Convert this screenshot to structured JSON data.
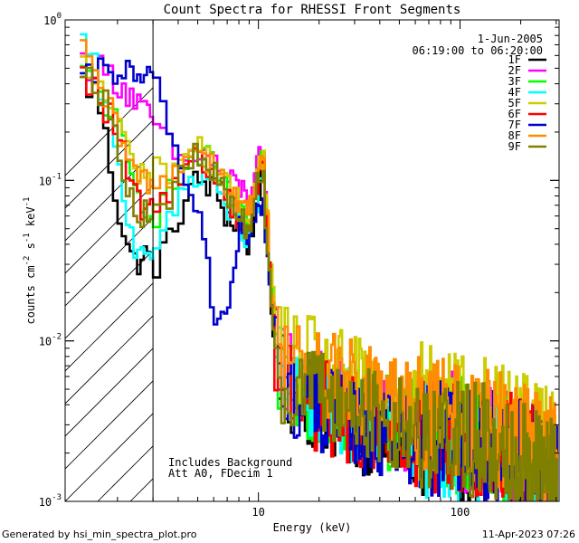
{
  "chart_data": {
    "type": "line",
    "title": "Count Spectra for RHESSI Front Segments",
    "xlabel": "Energy (keV)",
    "ylabel_parts": [
      "counts cm",
      "-2",
      " s",
      "-1",
      " keV",
      "-1"
    ],
    "xscale": "log",
    "yscale": "log",
    "xlim": [
      1.1,
      310
    ],
    "ylim": [
      0.001,
      1.0
    ],
    "x_ticks": [
      {
        "value": 10,
        "label": "10"
      },
      {
        "value": 100,
        "label": "100"
      }
    ],
    "y_ticks": [
      {
        "value": 1.0,
        "base": "10",
        "exp": "0"
      },
      {
        "value": 0.1,
        "base": "10",
        "exp": "-1"
      },
      {
        "value": 0.01,
        "base": "10",
        "exp": "-2"
      },
      {
        "value": 0.001,
        "base": "10",
        "exp": "-3"
      }
    ],
    "hatched_region": [
      1.1,
      3.0
    ],
    "cutoff_line_energy": 3.0,
    "annotations_top_right": [
      "1-Jun-2005",
      "06:19:00 to 06:20:00"
    ],
    "annotations_bottom_left": [
      "Includes Background",
      "Att A0, FDecim 1"
    ],
    "legend_position": "top-right",
    "series": [
      {
        "name": "1F",
        "color": "#000000",
        "anchors": [
          [
            1.35,
            0.4
          ],
          [
            1.6,
            0.35
          ],
          [
            2.0,
            0.07
          ],
          [
            2.4,
            0.03
          ],
          [
            2.8,
            0.035
          ],
          [
            3.0,
            0.028
          ],
          [
            3.6,
            0.04
          ],
          [
            4.2,
            0.07
          ],
          [
            5.0,
            0.1
          ],
          [
            6.0,
            0.09
          ],
          [
            7.0,
            0.06
          ],
          [
            8.0,
            0.05
          ],
          [
            9.0,
            0.04
          ],
          [
            10.5,
            0.12
          ],
          [
            11.5,
            0.02
          ],
          [
            12.5,
            0.006
          ],
          [
            15,
            0.005
          ],
          [
            20,
            0.004
          ],
          [
            30,
            0.003
          ],
          [
            50,
            0.0025
          ],
          [
            80,
            0.0023
          ],
          [
            120,
            0.0022
          ],
          [
            200,
            0.0018
          ],
          [
            290,
            0.0013
          ]
        ]
      },
      {
        "name": "2F",
        "color": "#ff00ff",
        "anchors": [
          [
            1.35,
            0.55
          ],
          [
            1.6,
            0.5
          ],
          [
            2.0,
            0.42
          ],
          [
            2.4,
            0.33
          ],
          [
            2.8,
            0.25
          ],
          [
            3.0,
            0.24
          ],
          [
            3.6,
            0.16
          ],
          [
            4.2,
            0.13
          ],
          [
            5.0,
            0.15
          ],
          [
            6.0,
            0.13
          ],
          [
            7.0,
            0.1
          ],
          [
            8.0,
            0.09
          ],
          [
            9.0,
            0.08
          ],
          [
            10.5,
            0.15
          ],
          [
            11.5,
            0.025
          ],
          [
            12.5,
            0.008
          ],
          [
            15,
            0.006
          ],
          [
            20,
            0.0045
          ],
          [
            30,
            0.0035
          ],
          [
            50,
            0.003
          ],
          [
            80,
            0.0028
          ],
          [
            120,
            0.0025
          ],
          [
            200,
            0.002
          ],
          [
            290,
            0.0015
          ]
        ]
      },
      {
        "name": "3F",
        "color": "#00ff00",
        "anchors": [
          [
            1.35,
            0.45
          ],
          [
            1.6,
            0.38
          ],
          [
            2.0,
            0.22
          ],
          [
            2.4,
            0.09
          ],
          [
            2.8,
            0.07
          ],
          [
            3.0,
            0.06
          ],
          [
            3.6,
            0.08
          ],
          [
            4.2,
            0.11
          ],
          [
            5.0,
            0.15
          ],
          [
            6.0,
            0.12
          ],
          [
            7.0,
            0.08
          ],
          [
            8.0,
            0.06
          ],
          [
            9.0,
            0.05
          ],
          [
            10.5,
            0.13
          ],
          [
            11.5,
            0.022
          ],
          [
            12.5,
            0.007
          ],
          [
            15,
            0.0055
          ],
          [
            20,
            0.0045
          ],
          [
            30,
            0.0036
          ],
          [
            50,
            0.003
          ],
          [
            80,
            0.0027
          ],
          [
            120,
            0.0025
          ],
          [
            200,
            0.0021
          ],
          [
            290,
            0.0016
          ]
        ]
      },
      {
        "name": "4F",
        "color": "#00ffff",
        "anchors": [
          [
            1.35,
            0.7
          ],
          [
            1.6,
            0.45
          ],
          [
            2.0,
            0.13
          ],
          [
            2.4,
            0.04
          ],
          [
            2.8,
            0.04
          ],
          [
            3.0,
            0.035
          ],
          [
            3.6,
            0.05
          ],
          [
            4.2,
            0.08
          ],
          [
            5.0,
            0.12
          ],
          [
            6.0,
            0.1
          ],
          [
            7.0,
            0.07
          ],
          [
            8.0,
            0.055
          ],
          [
            9.0,
            0.045
          ],
          [
            10.5,
            0.11
          ],
          [
            11.5,
            0.02
          ],
          [
            12.5,
            0.0065
          ],
          [
            15,
            0.005
          ],
          [
            20,
            0.0042
          ],
          [
            30,
            0.0034
          ],
          [
            50,
            0.0028
          ],
          [
            80,
            0.0024
          ],
          [
            120,
            0.0022
          ],
          [
            200,
            0.0018
          ],
          [
            290,
            0.0012
          ]
        ]
      },
      {
        "name": "5F",
        "color": "#cccc00",
        "anchors": [
          [
            1.35,
            0.5
          ],
          [
            1.6,
            0.4
          ],
          [
            2.0,
            0.25
          ],
          [
            2.4,
            0.12
          ],
          [
            2.8,
            0.11
          ],
          [
            3.0,
            0.11
          ],
          [
            3.6,
            0.12
          ],
          [
            4.2,
            0.14
          ],
          [
            5.0,
            0.16
          ],
          [
            6.0,
            0.13
          ],
          [
            7.0,
            0.09
          ],
          [
            8.0,
            0.07
          ],
          [
            9.0,
            0.06
          ],
          [
            10.5,
            0.16
          ],
          [
            11.5,
            0.03
          ],
          [
            12.5,
            0.01
          ],
          [
            15,
            0.008
          ],
          [
            20,
            0.007
          ],
          [
            30,
            0.0055
          ],
          [
            50,
            0.0045
          ],
          [
            80,
            0.004
          ],
          [
            120,
            0.0035
          ],
          [
            200,
            0.003
          ],
          [
            290,
            0.002
          ]
        ]
      },
      {
        "name": "6F",
        "color": "#ff0000",
        "anchors": [
          [
            1.35,
            0.42
          ],
          [
            1.6,
            0.36
          ],
          [
            2.0,
            0.2
          ],
          [
            2.4,
            0.08
          ],
          [
            2.8,
            0.065
          ],
          [
            3.0,
            0.06
          ],
          [
            3.6,
            0.09
          ],
          [
            4.2,
            0.12
          ],
          [
            5.0,
            0.14
          ],
          [
            6.0,
            0.11
          ],
          [
            7.0,
            0.08
          ],
          [
            8.0,
            0.06
          ],
          [
            9.0,
            0.05
          ],
          [
            10.5,
            0.14
          ],
          [
            11.5,
            0.022
          ],
          [
            12.5,
            0.0065
          ],
          [
            15,
            0.0048
          ],
          [
            20,
            0.004
          ],
          [
            30,
            0.0032
          ],
          [
            50,
            0.0028
          ],
          [
            80,
            0.0025
          ],
          [
            120,
            0.0023
          ],
          [
            200,
            0.0019
          ],
          [
            290,
            0.0014
          ]
        ]
      },
      {
        "name": "7F",
        "color": "#0000cc",
        "anchors": [
          [
            1.35,
            0.38
          ],
          [
            1.6,
            0.48
          ],
          [
            2.0,
            0.48
          ],
          [
            2.4,
            0.45
          ],
          [
            2.8,
            0.42
          ],
          [
            3.0,
            0.4
          ],
          [
            3.6,
            0.25
          ],
          [
            4.2,
            0.1
          ],
          [
            5.0,
            0.07
          ],
          [
            5.5,
            0.04
          ],
          [
            6.0,
            0.015
          ],
          [
            7.0,
            0.013
          ],
          [
            8.0,
            0.05
          ],
          [
            9.0,
            0.04
          ],
          [
            10.5,
            0.08
          ],
          [
            11.5,
            0.02
          ],
          [
            12.5,
            0.006
          ],
          [
            15,
            0.0045
          ],
          [
            20,
            0.0038
          ],
          [
            30,
            0.003
          ],
          [
            50,
            0.0026
          ],
          [
            80,
            0.0024
          ],
          [
            120,
            0.0022
          ],
          [
            200,
            0.0019
          ],
          [
            290,
            0.0014
          ]
        ]
      },
      {
        "name": "8F",
        "color": "#ff8c00",
        "anchors": [
          [
            1.35,
            0.6
          ],
          [
            1.6,
            0.42
          ],
          [
            2.0,
            0.2
          ],
          [
            2.4,
            0.11
          ],
          [
            2.8,
            0.1
          ],
          [
            3.0,
            0.09
          ],
          [
            3.6,
            0.11
          ],
          [
            4.2,
            0.13
          ],
          [
            5.0,
            0.16
          ],
          [
            6.0,
            0.13
          ],
          [
            7.0,
            0.09
          ],
          [
            8.0,
            0.07
          ],
          [
            9.0,
            0.06
          ],
          [
            10.5,
            0.15
          ],
          [
            11.5,
            0.028
          ],
          [
            12.5,
            0.009
          ],
          [
            15,
            0.0075
          ],
          [
            20,
            0.0065
          ],
          [
            30,
            0.005
          ],
          [
            50,
            0.004
          ],
          [
            80,
            0.0035
          ],
          [
            120,
            0.003
          ],
          [
            200,
            0.0025
          ],
          [
            290,
            0.0018
          ]
        ]
      },
      {
        "name": "9F",
        "color": "#808000",
        "anchors": [
          [
            1.35,
            0.55
          ],
          [
            1.6,
            0.4
          ],
          [
            2.0,
            0.18
          ],
          [
            2.4,
            0.07
          ],
          [
            2.8,
            0.06
          ],
          [
            3.0,
            0.055
          ],
          [
            3.6,
            0.08
          ],
          [
            4.2,
            0.11
          ],
          [
            5.0,
            0.14
          ],
          [
            6.0,
            0.11
          ],
          [
            7.0,
            0.08
          ],
          [
            8.0,
            0.06
          ],
          [
            9.0,
            0.05
          ],
          [
            10.5,
            0.13
          ],
          [
            11.5,
            0.02
          ],
          [
            12.5,
            0.0065
          ],
          [
            15,
            0.005
          ],
          [
            20,
            0.0045
          ],
          [
            30,
            0.0038
          ],
          [
            50,
            0.003
          ],
          [
            80,
            0.0027
          ],
          [
            120,
            0.0024
          ],
          [
            200,
            0.002
          ],
          [
            290,
            0.0014
          ]
        ]
      }
    ]
  },
  "footer": {
    "generated_by": "Generated by hsi_min_spectra_plot.pro",
    "timestamp": "11-Apr-2023 07:26"
  }
}
